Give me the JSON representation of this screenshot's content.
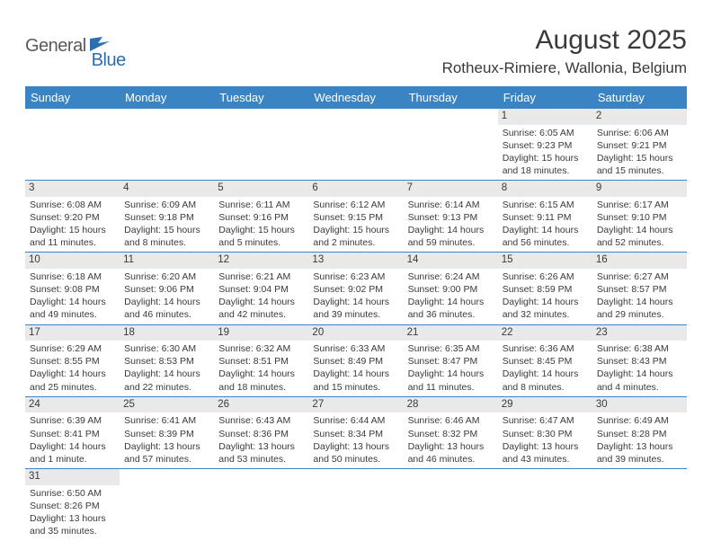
{
  "brand": {
    "part1": "General",
    "part2": "Blue"
  },
  "title": "August 2025",
  "location": "Rotheux-Rimiere, Wallonia, Belgium",
  "colors": {
    "header_bg": "#3b84c4",
    "header_text": "#ffffff",
    "daynum_bg": "#e9e9e9",
    "text": "#3a3a3a",
    "logo_gray": "#5a5a5a",
    "logo_blue": "#2b6fb0"
  },
  "day_headers": [
    "Sunday",
    "Monday",
    "Tuesday",
    "Wednesday",
    "Thursday",
    "Friday",
    "Saturday"
  ],
  "weeks": [
    [
      null,
      null,
      null,
      null,
      null,
      {
        "n": "1",
        "sr": "Sunrise: 6:05 AM",
        "ss": "Sunset: 9:23 PM",
        "dl": "Daylight: 15 hours and 18 minutes."
      },
      {
        "n": "2",
        "sr": "Sunrise: 6:06 AM",
        "ss": "Sunset: 9:21 PM",
        "dl": "Daylight: 15 hours and 15 minutes."
      }
    ],
    [
      {
        "n": "3",
        "sr": "Sunrise: 6:08 AM",
        "ss": "Sunset: 9:20 PM",
        "dl": "Daylight: 15 hours and 11 minutes."
      },
      {
        "n": "4",
        "sr": "Sunrise: 6:09 AM",
        "ss": "Sunset: 9:18 PM",
        "dl": "Daylight: 15 hours and 8 minutes."
      },
      {
        "n": "5",
        "sr": "Sunrise: 6:11 AM",
        "ss": "Sunset: 9:16 PM",
        "dl": "Daylight: 15 hours and 5 minutes."
      },
      {
        "n": "6",
        "sr": "Sunrise: 6:12 AM",
        "ss": "Sunset: 9:15 PM",
        "dl": "Daylight: 15 hours and 2 minutes."
      },
      {
        "n": "7",
        "sr": "Sunrise: 6:14 AM",
        "ss": "Sunset: 9:13 PM",
        "dl": "Daylight: 14 hours and 59 minutes."
      },
      {
        "n": "8",
        "sr": "Sunrise: 6:15 AM",
        "ss": "Sunset: 9:11 PM",
        "dl": "Daylight: 14 hours and 56 minutes."
      },
      {
        "n": "9",
        "sr": "Sunrise: 6:17 AM",
        "ss": "Sunset: 9:10 PM",
        "dl": "Daylight: 14 hours and 52 minutes."
      }
    ],
    [
      {
        "n": "10",
        "sr": "Sunrise: 6:18 AM",
        "ss": "Sunset: 9:08 PM",
        "dl": "Daylight: 14 hours and 49 minutes."
      },
      {
        "n": "11",
        "sr": "Sunrise: 6:20 AM",
        "ss": "Sunset: 9:06 PM",
        "dl": "Daylight: 14 hours and 46 minutes."
      },
      {
        "n": "12",
        "sr": "Sunrise: 6:21 AM",
        "ss": "Sunset: 9:04 PM",
        "dl": "Daylight: 14 hours and 42 minutes."
      },
      {
        "n": "13",
        "sr": "Sunrise: 6:23 AM",
        "ss": "Sunset: 9:02 PM",
        "dl": "Daylight: 14 hours and 39 minutes."
      },
      {
        "n": "14",
        "sr": "Sunrise: 6:24 AM",
        "ss": "Sunset: 9:00 PM",
        "dl": "Daylight: 14 hours and 36 minutes."
      },
      {
        "n": "15",
        "sr": "Sunrise: 6:26 AM",
        "ss": "Sunset: 8:59 PM",
        "dl": "Daylight: 14 hours and 32 minutes."
      },
      {
        "n": "16",
        "sr": "Sunrise: 6:27 AM",
        "ss": "Sunset: 8:57 PM",
        "dl": "Daylight: 14 hours and 29 minutes."
      }
    ],
    [
      {
        "n": "17",
        "sr": "Sunrise: 6:29 AM",
        "ss": "Sunset: 8:55 PM",
        "dl": "Daylight: 14 hours and 25 minutes."
      },
      {
        "n": "18",
        "sr": "Sunrise: 6:30 AM",
        "ss": "Sunset: 8:53 PM",
        "dl": "Daylight: 14 hours and 22 minutes."
      },
      {
        "n": "19",
        "sr": "Sunrise: 6:32 AM",
        "ss": "Sunset: 8:51 PM",
        "dl": "Daylight: 14 hours and 18 minutes."
      },
      {
        "n": "20",
        "sr": "Sunrise: 6:33 AM",
        "ss": "Sunset: 8:49 PM",
        "dl": "Daylight: 14 hours and 15 minutes."
      },
      {
        "n": "21",
        "sr": "Sunrise: 6:35 AM",
        "ss": "Sunset: 8:47 PM",
        "dl": "Daylight: 14 hours and 11 minutes."
      },
      {
        "n": "22",
        "sr": "Sunrise: 6:36 AM",
        "ss": "Sunset: 8:45 PM",
        "dl": "Daylight: 14 hours and 8 minutes."
      },
      {
        "n": "23",
        "sr": "Sunrise: 6:38 AM",
        "ss": "Sunset: 8:43 PM",
        "dl": "Daylight: 14 hours and 4 minutes."
      }
    ],
    [
      {
        "n": "24",
        "sr": "Sunrise: 6:39 AM",
        "ss": "Sunset: 8:41 PM",
        "dl": "Daylight: 14 hours and 1 minute."
      },
      {
        "n": "25",
        "sr": "Sunrise: 6:41 AM",
        "ss": "Sunset: 8:39 PM",
        "dl": "Daylight: 13 hours and 57 minutes."
      },
      {
        "n": "26",
        "sr": "Sunrise: 6:43 AM",
        "ss": "Sunset: 8:36 PM",
        "dl": "Daylight: 13 hours and 53 minutes."
      },
      {
        "n": "27",
        "sr": "Sunrise: 6:44 AM",
        "ss": "Sunset: 8:34 PM",
        "dl": "Daylight: 13 hours and 50 minutes."
      },
      {
        "n": "28",
        "sr": "Sunrise: 6:46 AM",
        "ss": "Sunset: 8:32 PM",
        "dl": "Daylight: 13 hours and 46 minutes."
      },
      {
        "n": "29",
        "sr": "Sunrise: 6:47 AM",
        "ss": "Sunset: 8:30 PM",
        "dl": "Daylight: 13 hours and 43 minutes."
      },
      {
        "n": "30",
        "sr": "Sunrise: 6:49 AM",
        "ss": "Sunset: 8:28 PM",
        "dl": "Daylight: 13 hours and 39 minutes."
      }
    ],
    [
      {
        "n": "31",
        "sr": "Sunrise: 6:50 AM",
        "ss": "Sunset: 8:26 PM",
        "dl": "Daylight: 13 hours and 35 minutes."
      },
      null,
      null,
      null,
      null,
      null,
      null
    ]
  ]
}
